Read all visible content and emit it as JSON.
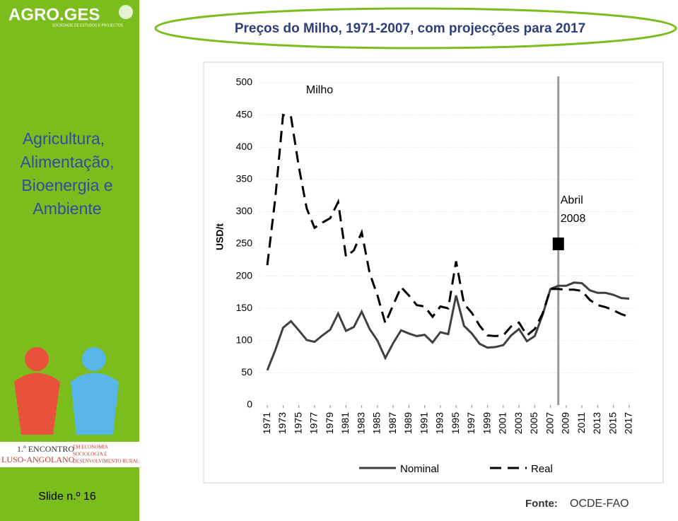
{
  "slide": {
    "logo": "AGRO.GES",
    "logo_subtitle": "SOCIEDADE DE ESTUDOS E PROJECTOS",
    "title": "Preços do Milho, 1971-2007, com projecções para 2017",
    "sidebar_heading": [
      "Agricultura,",
      "Alimentação,",
      "Bioenergia e",
      "Ambiente"
    ],
    "event_logo": [
      "1.º ENCONTRO",
      "LUSO-ANGOLANO",
      "EM ECONOMIA",
      "SOCIOLOGIA E",
      "DESENVOLVIMENTO RURAL"
    ],
    "slide_number": "Slide n.º 16",
    "source_label": "Fonte:",
    "source": "OCDE-FAO"
  },
  "chart_data": {
    "type": "line",
    "title": "Milho",
    "y_label": "USD/t",
    "x": [
      1971,
      1972,
      1973,
      1974,
      1975,
      1976,
      1977,
      1978,
      1979,
      1980,
      1981,
      1982,
      1983,
      1984,
      1985,
      1986,
      1987,
      1988,
      1989,
      1990,
      1991,
      1992,
      1993,
      1994,
      1995,
      1996,
      1997,
      1998,
      1999,
      2000,
      2001,
      2002,
      2003,
      2004,
      2005,
      2006,
      2007,
      2008,
      2009,
      2010,
      2011,
      2012,
      2013,
      2014,
      2015,
      2016,
      2017
    ],
    "series": [
      {
        "name": "Nominal",
        "color": "#404040",
        "style": "solid",
        "values": [
          54,
          85,
          120,
          130,
          116,
          101,
          98,
          108,
          117,
          142,
          115,
          121,
          145,
          118,
          100,
          73,
          96,
          116,
          111,
          107,
          109,
          97,
          113,
          110,
          170,
          123,
          111,
          95,
          89,
          90,
          93,
          108,
          118,
          99,
          107,
          140,
          180,
          185,
          185,
          190,
          189,
          178,
          174,
          174,
          171,
          166,
          165
        ]
      },
      {
        "name": "Real",
        "color": "#000000",
        "style": "dashed",
        "values": [
          217,
          320,
          450,
          448,
          370,
          305,
          275,
          283,
          290,
          315,
          230,
          240,
          268,
          205,
          170,
          127,
          155,
          183,
          170,
          155,
          153,
          137,
          153,
          150,
          223,
          157,
          143,
          123,
          108,
          107,
          108,
          122,
          128,
          108,
          118,
          142,
          180,
          180,
          179,
          179,
          177,
          163,
          155,
          152,
          147,
          141,
          137
        ]
      }
    ],
    "xlim": [
      1970,
      2018
    ],
    "xticks": [
      1971,
      1973,
      1975,
      1977,
      1979,
      1981,
      1983,
      1985,
      1987,
      1989,
      1991,
      1993,
      1995,
      1997,
      1999,
      2001,
      2003,
      2005,
      2007,
      2009,
      2011,
      2013,
      2015,
      2017
    ],
    "ylim": [
      0,
      500
    ],
    "yticks": [
      0,
      50,
      100,
      150,
      200,
      250,
      300,
      350,
      400,
      450,
      500
    ],
    "grid": true,
    "vline": {
      "x": 2008,
      "color": "#999999"
    },
    "annotation": {
      "lines": [
        "Abril",
        "2008"
      ],
      "x": 2008,
      "y": 250,
      "color": "#000000"
    }
  }
}
